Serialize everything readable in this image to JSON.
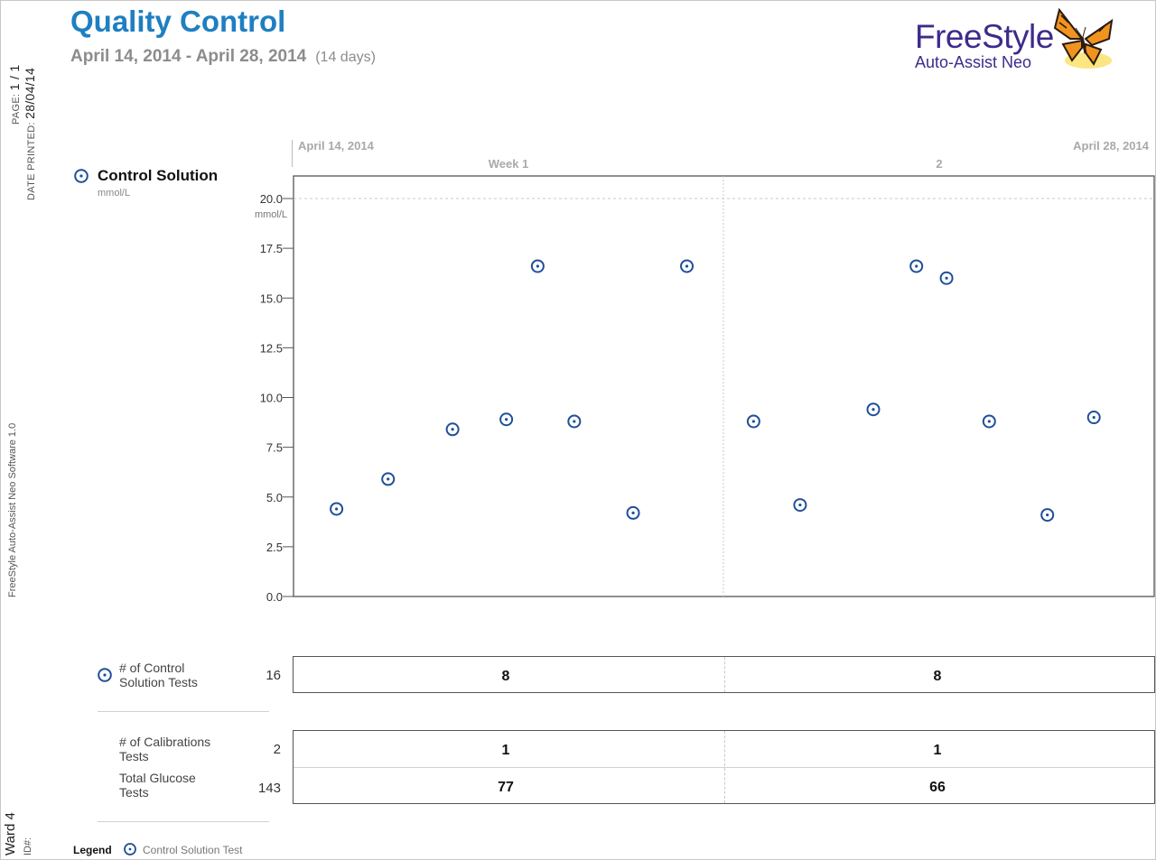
{
  "header": {
    "title": "Quality Control",
    "date_range": "April 14, 2014 - April 28, 2014",
    "day_count": "(14 days)"
  },
  "side": {
    "page_label": "PAGE: ",
    "page_value": "1 / 1",
    "printed_label": "DATE PRINTED: ",
    "printed_value": "28/04/14",
    "software": "FreeStyle Auto-Assist Neo Software 1.0",
    "ward": "Ward 4",
    "id_label": "ID#:"
  },
  "logo": {
    "name": "FreeStyle",
    "subname": "Auto-Assist Neo",
    "icon": "butterfly-icon",
    "colors": {
      "text": "#3f2a8c",
      "wing": "#f0941f",
      "wing_dark": "#2a1a10",
      "glow": "#f7d21a"
    }
  },
  "timeline": {
    "start_date": "April 14, 2014",
    "end_date": "April 28, 2014",
    "weeks": [
      "Week 1",
      "2"
    ]
  },
  "section": {
    "title": "Control Solution",
    "unit": "mmol/L",
    "icon": "control-solution-marker-icon"
  },
  "chart_data": {
    "type": "scatter",
    "y_unit": "mmol/L",
    "ylim": [
      0,
      20
    ],
    "y_ticks": [
      "0.0",
      "2.5",
      "5.0",
      "7.5",
      "10.0",
      "12.5",
      "15.0",
      "17.5",
      "20.0"
    ],
    "grid": "dashed line at 20.0",
    "marker_color": "#1f4f9a",
    "series": [
      {
        "week": "Week 1",
        "points": [
          {
            "x": 0.1,
            "y": 4.4
          },
          {
            "x": 0.22,
            "y": 5.9
          },
          {
            "x": 0.37,
            "y": 8.4
          },
          {
            "x": 0.495,
            "y": 8.9
          },
          {
            "x": 0.568,
            "y": 16.6
          },
          {
            "x": 0.653,
            "y": 8.8
          },
          {
            "x": 0.79,
            "y": 4.2
          },
          {
            "x": 0.915,
            "y": 16.6
          }
        ]
      },
      {
        "week": "2",
        "points": [
          {
            "x": 0.07,
            "y": 8.8
          },
          {
            "x": 0.178,
            "y": 4.6
          },
          {
            "x": 0.348,
            "y": 9.4
          },
          {
            "x": 0.448,
            "y": 16.6
          },
          {
            "x": 0.518,
            "y": 16.0
          },
          {
            "x": 0.617,
            "y": 8.8
          },
          {
            "x": 0.752,
            "y": 4.1
          },
          {
            "x": 0.86,
            "y": 9.0
          }
        ]
      }
    ]
  },
  "summary": {
    "control_tests": {
      "label_1": "# of Control",
      "label_2": "Solution Tests",
      "total": "16",
      "values": [
        "8",
        "8"
      ]
    },
    "calibration_tests": {
      "label_1": "# of Calibrations",
      "label_2": "Tests",
      "total": "2",
      "values": [
        "1",
        "1"
      ]
    },
    "glucose_tests": {
      "label_1": "Total Glucose",
      "label_2": "Tests",
      "total": "143",
      "values": [
        "77",
        "66"
      ]
    }
  },
  "legend": {
    "label": "Legend",
    "item": "Control Solution Test"
  }
}
